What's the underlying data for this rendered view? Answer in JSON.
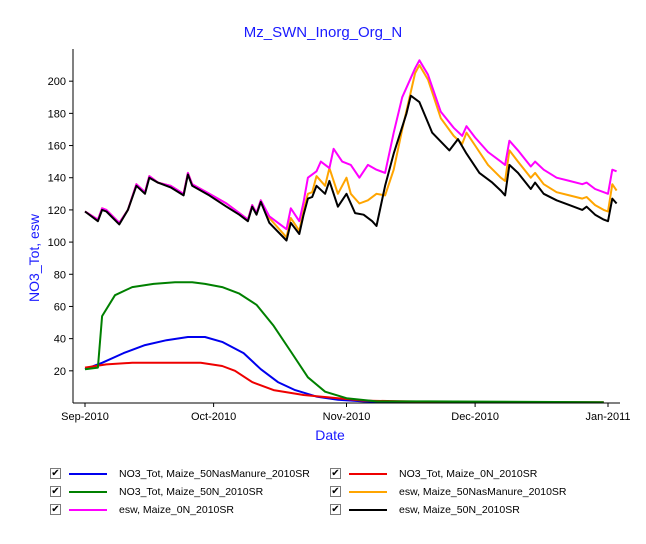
{
  "chart_data": {
    "type": "line",
    "title": "Mz_SWN_Inorg_Org_N",
    "xlabel": "Date",
    "ylabel": "NO3_Tot, esw",
    "xlim": [
      "2010-09-01",
      "2011-01-01"
    ],
    "ylim": [
      0,
      220
    ],
    "y_ticks": [
      20,
      40,
      60,
      80,
      100,
      120,
      140,
      160,
      180,
      200
    ],
    "x_ticks": [
      {
        "date": "2010-09-01",
        "label": "Sep-2010"
      },
      {
        "date": "2010-10-01",
        "label": "Oct-2010"
      },
      {
        "date": "2010-11-01",
        "label": "Nov-2010"
      },
      {
        "date": "2010-12-01",
        "label": "Dec-2010"
      },
      {
        "date": "2011-01-01",
        "label": "Jan-2011"
      }
    ],
    "grid": false,
    "legend_position": "bottom",
    "series": [
      {
        "name": "NO3_Tot, Maize_50NasManure_2010SR",
        "color": "#0000ee",
        "points": [
          [
            "2010-09-01",
            21
          ],
          [
            "2010-09-05",
            25
          ],
          [
            "2010-09-10",
            31
          ],
          [
            "2010-09-15",
            36
          ],
          [
            "2010-09-20",
            39
          ],
          [
            "2010-09-25",
            41
          ],
          [
            "2010-09-29",
            41
          ],
          [
            "2010-10-03",
            38
          ],
          [
            "2010-10-08",
            31
          ],
          [
            "2010-10-12",
            21
          ],
          [
            "2010-10-16",
            13
          ],
          [
            "2010-10-20",
            8
          ],
          [
            "2010-10-25",
            4
          ],
          [
            "2010-10-30",
            2
          ],
          [
            "2010-11-05",
            1
          ],
          [
            "2010-11-15",
            0.5
          ],
          [
            "2010-12-01",
            0.5
          ],
          [
            "2010-12-15",
            0.5
          ],
          [
            "2010-12-31",
            0.3
          ]
        ]
      },
      {
        "name": "NO3_Tot, Maize_0N_2010SR",
        "color": "#ee0000",
        "points": [
          [
            "2010-09-01",
            22
          ],
          [
            "2010-09-06",
            24
          ],
          [
            "2010-09-12",
            25
          ],
          [
            "2010-09-20",
            25
          ],
          [
            "2010-09-28",
            25
          ],
          [
            "2010-10-03",
            23
          ],
          [
            "2010-10-06",
            20
          ],
          [
            "2010-10-10",
            13
          ],
          [
            "2010-10-15",
            8
          ],
          [
            "2010-10-22",
            5
          ],
          [
            "2010-10-30",
            3
          ],
          [
            "2010-11-05",
            1.5
          ],
          [
            "2010-11-15",
            1
          ],
          [
            "2010-12-01",
            0.5
          ],
          [
            "2010-12-31",
            0.5
          ]
        ]
      },
      {
        "name": "NO3_Tot, Maize_50N_2010SR",
        "color": "#008000",
        "points": [
          [
            "2010-09-01",
            21
          ],
          [
            "2010-09-04",
            22
          ],
          [
            "2010-09-05",
            54
          ],
          [
            "2010-09-08",
            67
          ],
          [
            "2010-09-12",
            72
          ],
          [
            "2010-09-17",
            74
          ],
          [
            "2010-09-22",
            75
          ],
          [
            "2010-09-26",
            75
          ],
          [
            "2010-09-29",
            74
          ],
          [
            "2010-10-03",
            72
          ],
          [
            "2010-10-07",
            68
          ],
          [
            "2010-10-11",
            61
          ],
          [
            "2010-10-15",
            48
          ],
          [
            "2010-10-19",
            32
          ],
          [
            "2010-10-23",
            16
          ],
          [
            "2010-10-27",
            7
          ],
          [
            "2010-11-01",
            3
          ],
          [
            "2010-11-08",
            1
          ],
          [
            "2010-11-20",
            1
          ],
          [
            "2010-12-31",
            0.5
          ]
        ]
      },
      {
        "name": "esw, Maize_50NasManure_2010SR",
        "color": "#ffa500",
        "points": [
          [
            "2010-09-01",
            119
          ],
          [
            "2010-09-04",
            114
          ],
          [
            "2010-09-05",
            121
          ],
          [
            "2010-09-06",
            120
          ],
          [
            "2010-09-09",
            112
          ],
          [
            "2010-09-11",
            120
          ],
          [
            "2010-09-13",
            136
          ],
          [
            "2010-09-15",
            131
          ],
          [
            "2010-09-16",
            141
          ],
          [
            "2010-09-18",
            137
          ],
          [
            "2010-09-21",
            135
          ],
          [
            "2010-09-24",
            130
          ],
          [
            "2010-09-25",
            143
          ],
          [
            "2010-09-26",
            136
          ],
          [
            "2010-09-30",
            130
          ],
          [
            "2010-10-04",
            124
          ],
          [
            "2010-10-07",
            118
          ],
          [
            "2010-10-09",
            114
          ],
          [
            "2010-10-10",
            123
          ],
          [
            "2010-10-11",
            118
          ],
          [
            "2010-10-12",
            126
          ],
          [
            "2010-10-14",
            115
          ],
          [
            "2010-10-18",
            103
          ],
          [
            "2010-10-19",
            115
          ],
          [
            "2010-10-21",
            107
          ],
          [
            "2010-10-22",
            120
          ],
          [
            "2010-10-23",
            130
          ],
          [
            "2010-10-24",
            131
          ],
          [
            "2010-10-25",
            141
          ],
          [
            "2010-10-27",
            135
          ],
          [
            "2010-10-28",
            146
          ],
          [
            "2010-10-30",
            130
          ],
          [
            "2010-11-01",
            140
          ],
          [
            "2010-11-02",
            130
          ],
          [
            "2010-11-04",
            124
          ],
          [
            "2010-11-06",
            126
          ],
          [
            "2010-11-08",
            130
          ],
          [
            "2010-11-10",
            129
          ],
          [
            "2010-11-12",
            145
          ],
          [
            "2010-11-14",
            170
          ],
          [
            "2010-11-17",
            205
          ],
          [
            "2010-11-18",
            210
          ],
          [
            "2010-11-20",
            201
          ],
          [
            "2010-11-23",
            177
          ],
          [
            "2010-11-26",
            166
          ],
          [
            "2010-11-28",
            161
          ],
          [
            "2010-11-29",
            168
          ],
          [
            "2010-12-01",
            160
          ],
          [
            "2010-12-04",
            148
          ],
          [
            "2010-12-07",
            140
          ],
          [
            "2010-12-08",
            138
          ],
          [
            "2010-12-09",
            157
          ],
          [
            "2010-12-11",
            150
          ],
          [
            "2010-12-14",
            140
          ],
          [
            "2010-12-15",
            143
          ],
          [
            "2010-12-17",
            136
          ],
          [
            "2010-12-20",
            131
          ],
          [
            "2010-12-23",
            129
          ],
          [
            "2010-12-26",
            127
          ],
          [
            "2010-12-27",
            128
          ],
          [
            "2010-12-29",
            123
          ],
          [
            "2010-12-31",
            120
          ],
          [
            "2011-01-01",
            119
          ],
          [
            "2011-01-02",
            136
          ],
          [
            "2011-01-03",
            132
          ]
        ]
      },
      {
        "name": "esw, Maize_0N_2010SR",
        "color": "#ff00ff",
        "points": [
          [
            "2010-09-01",
            119
          ],
          [
            "2010-09-04",
            114
          ],
          [
            "2010-09-05",
            121
          ],
          [
            "2010-09-06",
            120
          ],
          [
            "2010-09-09",
            112
          ],
          [
            "2010-09-11",
            120
          ],
          [
            "2010-09-13",
            136
          ],
          [
            "2010-09-15",
            131
          ],
          [
            "2010-09-16",
            141
          ],
          [
            "2010-09-18",
            137
          ],
          [
            "2010-09-21",
            135
          ],
          [
            "2010-09-24",
            130
          ],
          [
            "2010-09-25",
            143
          ],
          [
            "2010-09-26",
            136
          ],
          [
            "2010-09-30",
            130
          ],
          [
            "2010-10-04",
            124
          ],
          [
            "2010-10-07",
            118
          ],
          [
            "2010-10-09",
            114
          ],
          [
            "2010-10-10",
            123
          ],
          [
            "2010-10-11",
            118
          ],
          [
            "2010-10-12",
            126
          ],
          [
            "2010-10-14",
            116
          ],
          [
            "2010-10-18",
            108
          ],
          [
            "2010-10-19",
            121
          ],
          [
            "2010-10-21",
            113
          ],
          [
            "2010-10-22",
            125
          ],
          [
            "2010-10-23",
            140
          ],
          [
            "2010-10-25",
            144
          ],
          [
            "2010-10-26",
            150
          ],
          [
            "2010-10-28",
            146
          ],
          [
            "2010-10-29",
            158
          ],
          [
            "2010-10-31",
            150
          ],
          [
            "2010-11-02",
            148
          ],
          [
            "2010-11-04",
            140
          ],
          [
            "2010-11-06",
            148
          ],
          [
            "2010-11-08",
            145
          ],
          [
            "2010-11-10",
            143
          ],
          [
            "2010-11-12",
            168
          ],
          [
            "2010-11-14",
            190
          ],
          [
            "2010-11-17",
            208
          ],
          [
            "2010-11-18",
            213
          ],
          [
            "2010-11-20",
            204
          ],
          [
            "2010-11-23",
            181
          ],
          [
            "2010-11-26",
            171
          ],
          [
            "2010-11-28",
            166
          ],
          [
            "2010-11-29",
            172
          ],
          [
            "2010-12-01",
            165
          ],
          [
            "2010-12-04",
            156
          ],
          [
            "2010-12-07",
            150
          ],
          [
            "2010-12-08",
            148
          ],
          [
            "2010-12-09",
            163
          ],
          [
            "2010-12-11",
            157
          ],
          [
            "2010-12-14",
            147
          ],
          [
            "2010-12-15",
            150
          ],
          [
            "2010-12-17",
            145
          ],
          [
            "2010-12-20",
            140
          ],
          [
            "2010-12-23",
            138
          ],
          [
            "2010-12-26",
            136
          ],
          [
            "2010-12-27",
            137
          ],
          [
            "2010-12-29",
            133
          ],
          [
            "2010-12-31",
            131
          ],
          [
            "2011-01-01",
            130
          ],
          [
            "2011-01-02",
            145
          ],
          [
            "2011-01-03",
            144
          ]
        ]
      },
      {
        "name": "esw, Maize_50N_2010SR",
        "color": "#000000",
        "points": [
          [
            "2010-09-01",
            119
          ],
          [
            "2010-09-04",
            113
          ],
          [
            "2010-09-05",
            120
          ],
          [
            "2010-09-06",
            119
          ],
          [
            "2010-09-09",
            111
          ],
          [
            "2010-09-11",
            120
          ],
          [
            "2010-09-13",
            135
          ],
          [
            "2010-09-15",
            130
          ],
          [
            "2010-09-16",
            140
          ],
          [
            "2010-09-18",
            137
          ],
          [
            "2010-09-21",
            134
          ],
          [
            "2010-09-24",
            129
          ],
          [
            "2010-09-25",
            142
          ],
          [
            "2010-09-26",
            135
          ],
          [
            "2010-09-30",
            129
          ],
          [
            "2010-10-04",
            122
          ],
          [
            "2010-10-07",
            117
          ],
          [
            "2010-10-09",
            113
          ],
          [
            "2010-10-10",
            122
          ],
          [
            "2010-10-11",
            117
          ],
          [
            "2010-10-12",
            125
          ],
          [
            "2010-10-14",
            112
          ],
          [
            "2010-10-18",
            101
          ],
          [
            "2010-10-19",
            112
          ],
          [
            "2010-10-21",
            105
          ],
          [
            "2010-10-22",
            117
          ],
          [
            "2010-10-23",
            127
          ],
          [
            "2010-10-24",
            128
          ],
          [
            "2010-10-25",
            135
          ],
          [
            "2010-10-27",
            130
          ],
          [
            "2010-10-28",
            138
          ],
          [
            "2010-10-30",
            122
          ],
          [
            "2010-11-01",
            130
          ],
          [
            "2010-11-03",
            118
          ],
          [
            "2010-11-05",
            117
          ],
          [
            "2010-11-07",
            113
          ],
          [
            "2010-11-08",
            110
          ],
          [
            "2010-11-10",
            135
          ],
          [
            "2010-11-12",
            155
          ],
          [
            "2010-11-15",
            180
          ],
          [
            "2010-11-16",
            191
          ],
          [
            "2010-11-18",
            187
          ],
          [
            "2010-11-21",
            168
          ],
          [
            "2010-11-25",
            157
          ],
          [
            "2010-11-27",
            164
          ],
          [
            "2010-11-29",
            155
          ],
          [
            "2010-12-02",
            143
          ],
          [
            "2010-12-05",
            137
          ],
          [
            "2010-12-07",
            132
          ],
          [
            "2010-12-08",
            129
          ],
          [
            "2010-12-09",
            148
          ],
          [
            "2010-12-11",
            143
          ],
          [
            "2010-12-14",
            133
          ],
          [
            "2010-12-15",
            137
          ],
          [
            "2010-12-17",
            130
          ],
          [
            "2010-12-20",
            126
          ],
          [
            "2010-12-23",
            123
          ],
          [
            "2010-12-26",
            120
          ],
          [
            "2010-12-27",
            122
          ],
          [
            "2010-12-29",
            117
          ],
          [
            "2010-12-31",
            114
          ],
          [
            "2011-01-01",
            113
          ],
          [
            "2011-01-02",
            127
          ],
          [
            "2011-01-03",
            124
          ]
        ]
      }
    ]
  },
  "legend": {
    "items": [
      {
        "label": "NO3_Tot, Maize_50NasManure_2010SR",
        "color": "#0000ee",
        "checked": "✔"
      },
      {
        "label": "NO3_Tot, Maize_0N_2010SR",
        "color": "#ee0000",
        "checked": "✔"
      },
      {
        "label": "NO3_Tot, Maize_50N_2010SR",
        "color": "#008000",
        "checked": "✔"
      },
      {
        "label": "esw, Maize_50NasManure_2010SR",
        "color": "#ffa500",
        "checked": "✔"
      },
      {
        "label": "esw, Maize_0N_2010SR",
        "color": "#ff00ff",
        "checked": "✔"
      },
      {
        "label": "esw, Maize_50N_2010SR",
        "color": "#000000",
        "checked": "✔"
      }
    ]
  }
}
